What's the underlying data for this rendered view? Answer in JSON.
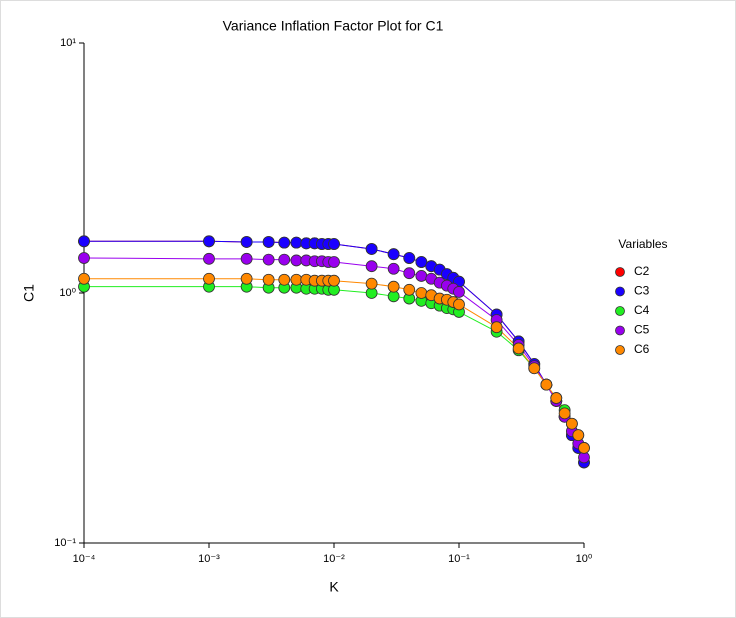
{
  "chart_data": {
    "type": "line",
    "title": "Variance Inflation Factor Plot for C1",
    "xlabel": "K",
    "ylabel": "C1",
    "xlog": true,
    "ylog": true,
    "xlim": [
      0.0001,
      1
    ],
    "ylim": [
      0.1,
      10
    ],
    "xticks": [
      {
        "value": 0.0001,
        "label": "10⁻⁴"
      },
      {
        "value": 0.001,
        "label": "10⁻³"
      },
      {
        "value": 0.01,
        "label": "10⁻²"
      },
      {
        "value": 0.1,
        "label": "10⁻¹"
      },
      {
        "value": 1,
        "label": "10⁰"
      }
    ],
    "yticks": [
      {
        "value": 0.1,
        "label": "10⁻¹"
      },
      {
        "value": 1,
        "label": "10⁰"
      },
      {
        "value": 10,
        "label": "10¹"
      }
    ],
    "legend_title": "Variables",
    "legend_position": "right",
    "x": [
      0.0001,
      0.001,
      0.002,
      0.003,
      0.004,
      0.005,
      0.006,
      0.007,
      0.008,
      0.009,
      0.01,
      0.02,
      0.03,
      0.04,
      0.05,
      0.06,
      0.07,
      0.08,
      0.09,
      0.1,
      0.2,
      0.3,
      0.4,
      0.5,
      0.6,
      0.7,
      0.8,
      0.9,
      1
    ],
    "series": [
      {
        "name": "C2",
        "color": "#ff0000",
        "values": [
          1.61,
          1.61,
          1.6,
          1.6,
          1.59,
          1.59,
          1.58,
          1.58,
          1.57,
          1.57,
          1.57,
          1.5,
          1.43,
          1.38,
          1.33,
          1.28,
          1.24,
          1.19,
          1.15,
          1.11,
          0.82,
          0.64,
          0.52,
          0.43,
          0.37,
          0.32,
          0.27,
          0.24,
          0.21
        ]
      },
      {
        "name": "C3",
        "color": "#1a00ff",
        "values": [
          1.61,
          1.61,
          1.6,
          1.6,
          1.59,
          1.59,
          1.58,
          1.58,
          1.57,
          1.57,
          1.57,
          1.5,
          1.43,
          1.38,
          1.33,
          1.28,
          1.24,
          1.19,
          1.15,
          1.11,
          0.82,
          0.64,
          0.52,
          0.43,
          0.37,
          0.32,
          0.27,
          0.24,
          0.21
        ]
      },
      {
        "name": "C4",
        "color": "#22ee22",
        "values": [
          1.06,
          1.06,
          1.06,
          1.05,
          1.05,
          1.05,
          1.04,
          1.04,
          1.04,
          1.03,
          1.03,
          1.0,
          0.97,
          0.95,
          0.93,
          0.91,
          0.89,
          0.87,
          0.86,
          0.84,
          0.7,
          0.59,
          0.5,
          0.43,
          0.38,
          0.34,
          0.3,
          0.27,
          0.24
        ]
      },
      {
        "name": "C5",
        "color": "#9900ee",
        "values": [
          1.38,
          1.37,
          1.37,
          1.36,
          1.36,
          1.35,
          1.35,
          1.34,
          1.34,
          1.33,
          1.33,
          1.28,
          1.25,
          1.2,
          1.17,
          1.14,
          1.1,
          1.07,
          1.04,
          1.01,
          0.78,
          0.62,
          0.51,
          0.43,
          0.37,
          0.32,
          0.28,
          0.25,
          0.22
        ]
      },
      {
        "name": "C6",
        "color": "#ff8800",
        "values": [
          1.14,
          1.14,
          1.14,
          1.13,
          1.13,
          1.13,
          1.13,
          1.12,
          1.12,
          1.12,
          1.12,
          1.09,
          1.06,
          1.03,
          1.0,
          0.98,
          0.95,
          0.94,
          0.92,
          0.9,
          0.73,
          0.6,
          0.5,
          0.43,
          0.38,
          0.33,
          0.3,
          0.27,
          0.24
        ]
      }
    ]
  }
}
